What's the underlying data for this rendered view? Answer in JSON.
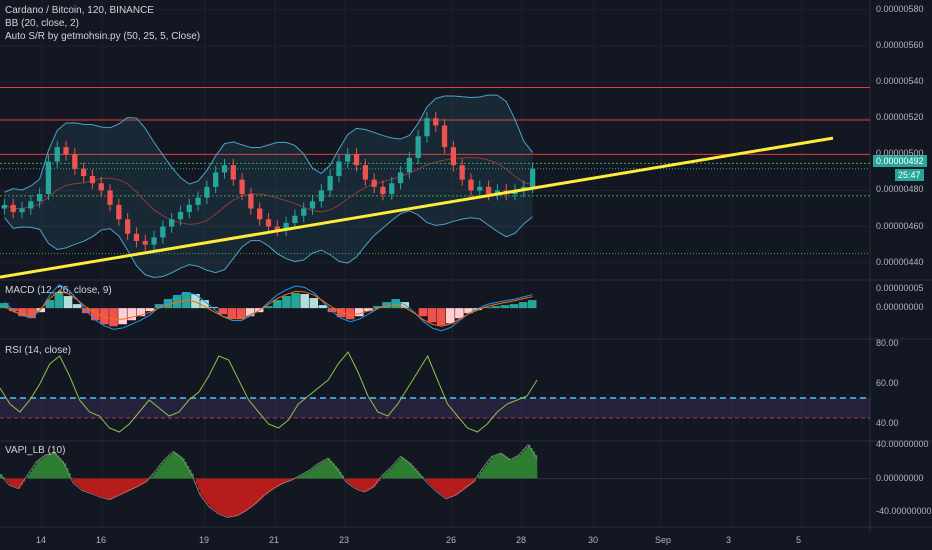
{
  "header": {
    "title": "Cardano / Bitcoin, 120, BINANCE",
    "bb_label": "BB (20, close, 2)",
    "sr_label": "Auto S/R by getmohsin.py (50, 25, 5, Close)"
  },
  "panels": {
    "macd_label": "MACD (12, 26, close, 9)",
    "rsi_label": "RSI (14, close)",
    "vapi_label": "VAPI_LB (10)"
  },
  "price_badge": "0.00000492",
  "countdown_badge": "25:47",
  "colors": {
    "background": "#131722",
    "up": "#26a69a",
    "down": "#ef5350",
    "trendline": "#ffeb3b",
    "resistance": "#e53935",
    "support": "#43a047",
    "bb": "#4aa3c8",
    "rsi_line": "#8bc34a",
    "rsi_level": "#4fc3f7",
    "vapi_pos": "#2e7d32",
    "vapi_neg": "#b71c1c"
  },
  "chart_data": [
    {
      "type": "line",
      "name": "main",
      "y_ticks": [
        "0.00000580",
        "0.00000560",
        "0.00000540",
        "0.00000520",
        "0.00000500",
        "0.00000480",
        "0.00000460",
        "0.00000440"
      ],
      "ylim": [
        4.315e-06,
        5.855e-06
      ],
      "x_ticks": [
        "14",
        "16",
        "19",
        "21",
        "23",
        "26",
        "28",
        "30",
        "Sep",
        "3",
        "5"
      ],
      "close": [
        4.72e-06,
        4.68e-06,
        4.7e-06,
        4.74e-06,
        4.78e-06,
        4.96e-06,
        5.04e-06,
        5e-06,
        4.92e-06,
        4.88e-06,
        4.84e-06,
        4.8e-06,
        4.72e-06,
        4.64e-06,
        4.56e-06,
        4.52e-06,
        4.5e-06,
        4.54e-06,
        4.6e-06,
        4.64e-06,
        4.68e-06,
        4.72e-06,
        4.76e-06,
        4.82e-06,
        4.9e-06,
        4.94e-06,
        4.86e-06,
        4.78e-06,
        4.7e-06,
        4.64e-06,
        4.6e-06,
        4.58e-06,
        4.62e-06,
        4.66e-06,
        4.7e-06,
        4.74e-06,
        4.8e-06,
        4.88e-06,
        4.96e-06,
        5e-06,
        4.94e-06,
        4.86e-06,
        4.82e-06,
        4.78e-06,
        4.84e-06,
        4.9e-06,
        4.98e-06,
        5.1e-06,
        5.2e-06,
        5.16e-06,
        5.04e-06,
        4.94e-06,
        4.86e-06,
        4.8e-06,
        4.82e-06,
        4.78e-06,
        4.8e-06,
        4.78e-06,
        4.8e-06,
        4.82e-06,
        4.92e-06
      ],
      "trendline": {
        "start": 4.32e-06,
        "end": 5.09e-06
      },
      "resistance": [
        5.37e-06,
        5.19e-06,
        5e-06
      ],
      "support": [
        4.95e-06,
        4.77e-06,
        4.45e-06
      ]
    },
    {
      "type": "bar",
      "name": "MACD",
      "y_ticks": [
        "0.00000005",
        "0.00000000"
      ],
      "ylim": [
        -8e-08,
        7e-08
      ],
      "histogram": [
        0.5,
        -0.3,
        -0.8,
        -1.0,
        -0.4,
        0.8,
        1.6,
        1.2,
        0.4,
        -0.5,
        -1.2,
        -1.6,
        -1.8,
        -1.6,
        -1.2,
        -0.8,
        -0.3,
        0.4,
        0.9,
        1.3,
        1.6,
        1.4,
        0.8,
        0.1,
        -0.6,
        -1.0,
        -1.1,
        -0.8,
        -0.4,
        0.2,
        0.8,
        1.2,
        1.5,
        1.4,
        1.0,
        0.3,
        -0.4,
        -0.9,
        -1.1,
        -0.8,
        -0.3,
        0.2,
        0.6,
        0.9,
        0.6,
        0.0,
        -0.8,
        -1.4,
        -1.7,
        -1.5,
        -1.0,
        -0.5,
        -0.2,
        0.1,
        0.2,
        0.3,
        0.4,
        0.6,
        0.8
      ]
    },
    {
      "type": "line",
      "name": "RSI",
      "y_ticks": [
        "80.00",
        "60.00",
        "40.00"
      ],
      "ylim": [
        32,
        82
      ],
      "levels": [
        53,
        43
      ],
      "values": [
        58,
        50,
        46,
        52,
        60,
        70,
        74,
        64,
        52,
        46,
        44,
        38,
        36,
        40,
        46,
        52,
        48,
        44,
        46,
        52,
        56,
        64,
        74,
        72,
        62,
        52,
        46,
        40,
        38,
        42,
        50,
        54,
        58,
        62,
        70,
        76,
        66,
        54,
        46,
        44,
        50,
        58,
        66,
        74,
        62,
        50,
        44,
        38,
        36,
        40,
        46,
        50,
        52,
        54,
        62
      ]
    },
    {
      "type": "area",
      "name": "VAPI_LB",
      "y_ticks": [
        "40.00000000",
        "0.00000000",
        "-40.00000000"
      ],
      "ylim": [
        -55,
        42
      ],
      "values": [
        5,
        -8,
        -12,
        4,
        20,
        28,
        30,
        18,
        -5,
        -14,
        -18,
        -22,
        -25,
        -20,
        -15,
        -10,
        -4,
        8,
        22,
        32,
        24,
        6,
        -20,
        -34,
        -42,
        -46,
        -44,
        -38,
        -30,
        -20,
        -12,
        -6,
        -2,
        4,
        10,
        18,
        24,
        12,
        -4,
        -12,
        -16,
        -10,
        4,
        14,
        26,
        18,
        6,
        -6,
        -16,
        -24,
        -20,
        -12,
        -4,
        12,
        26,
        30,
        22,
        28,
        40,
        24
      ]
    }
  ]
}
